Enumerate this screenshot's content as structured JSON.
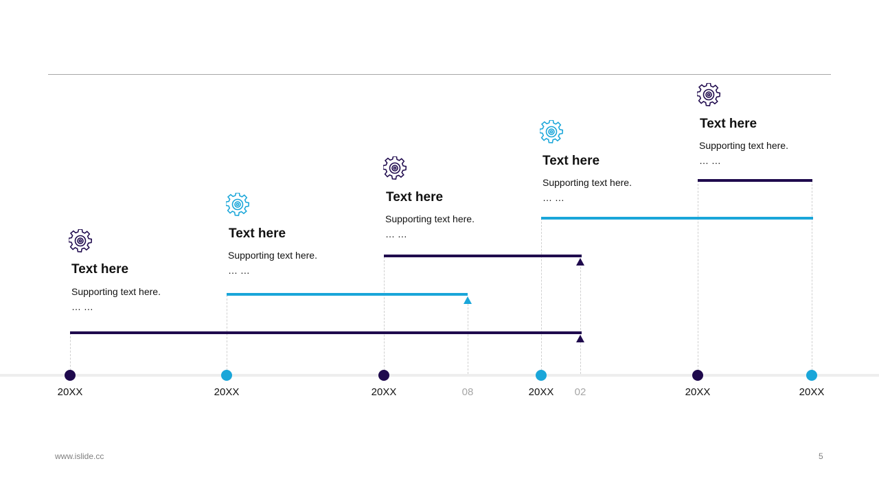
{
  "colors": {
    "dark": "#1f0a4d",
    "light": "#1aa6d9",
    "axis": "#eeeeee",
    "rule": "#a6a6a6"
  },
  "icons": {
    "milestone_icon": "gear-icon"
  },
  "milestones": [
    {
      "year": "20XX",
      "color": "dark",
      "title": "Text here",
      "support": "Supporting text here.",
      "ellipsis": "… …"
    },
    {
      "year": "20XX",
      "color": "light",
      "title": "Text here",
      "support": "Supporting text here.",
      "ellipsis": "… …"
    },
    {
      "year": "20XX",
      "color": "dark",
      "title": "Text here",
      "support": "Supporting text here.",
      "ellipsis": "… …"
    },
    {
      "year": "20XX",
      "color": "light",
      "title": "Text here",
      "support": "Supporting text here.",
      "ellipsis": "… …"
    },
    {
      "year": "20XX",
      "color": "dark",
      "title": "Text here",
      "support": "Supporting text here.",
      "ellipsis": "… …"
    }
  ],
  "end_marks": [
    {
      "label": "08",
      "style": "light"
    },
    {
      "label": "02",
      "style": "light"
    },
    {
      "label": "20XX",
      "style": "dark"
    }
  ],
  "footer": {
    "website": "www.islide.cc",
    "page_number": "5"
  }
}
